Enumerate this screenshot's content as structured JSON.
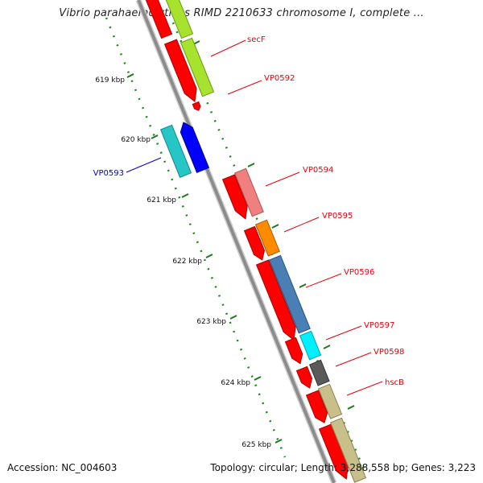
{
  "title": "Vibrio parahaemolyticus RIMD 2210633 chromosome I, complete ...",
  "footer": {
    "accession": "Accession: NC_004603",
    "topology": "Topology: circular; Length: 3,288,558 bp; Genes: 3,223"
  },
  "ticks": [
    {
      "label": "619 kbp"
    },
    {
      "label": "620 kbp"
    },
    {
      "label": "621 kbp"
    },
    {
      "label": "622 kbp"
    },
    {
      "label": "623 kbp"
    },
    {
      "label": "624 kbp"
    },
    {
      "label": "625 kbp"
    }
  ],
  "gene_labels": [
    {
      "name": "secF",
      "color": "#e8000b"
    },
    {
      "name": "VP0592",
      "color": "#e8000b"
    },
    {
      "name": "VP0593",
      "color": "#0000cc"
    },
    {
      "name": "VP0594",
      "color": "#e8000b"
    },
    {
      "name": "VP0595",
      "color": "#e8000b"
    },
    {
      "name": "VP0596",
      "color": "#e8000b"
    },
    {
      "name": "VP0597",
      "color": "#e8000b"
    },
    {
      "name": "VP0598",
      "color": "#e8000b"
    },
    {
      "name": "hscB",
      "color": "#e8000b"
    }
  ],
  "colors": {
    "backbone": "#8c8c8c",
    "tick": "#1a7a1a",
    "cds_red": "#ff0000",
    "yellowgreen": "#a6e22e",
    "cyan_dark": "#26c6c6",
    "blue": "#0000ff",
    "pink": "#f08080",
    "orange": "#ff8c00",
    "steelblue": "#4a7fb5",
    "cyan": "#00f0ff",
    "gray": "#5a5a5a",
    "khaki": "#c8bf8a"
  }
}
